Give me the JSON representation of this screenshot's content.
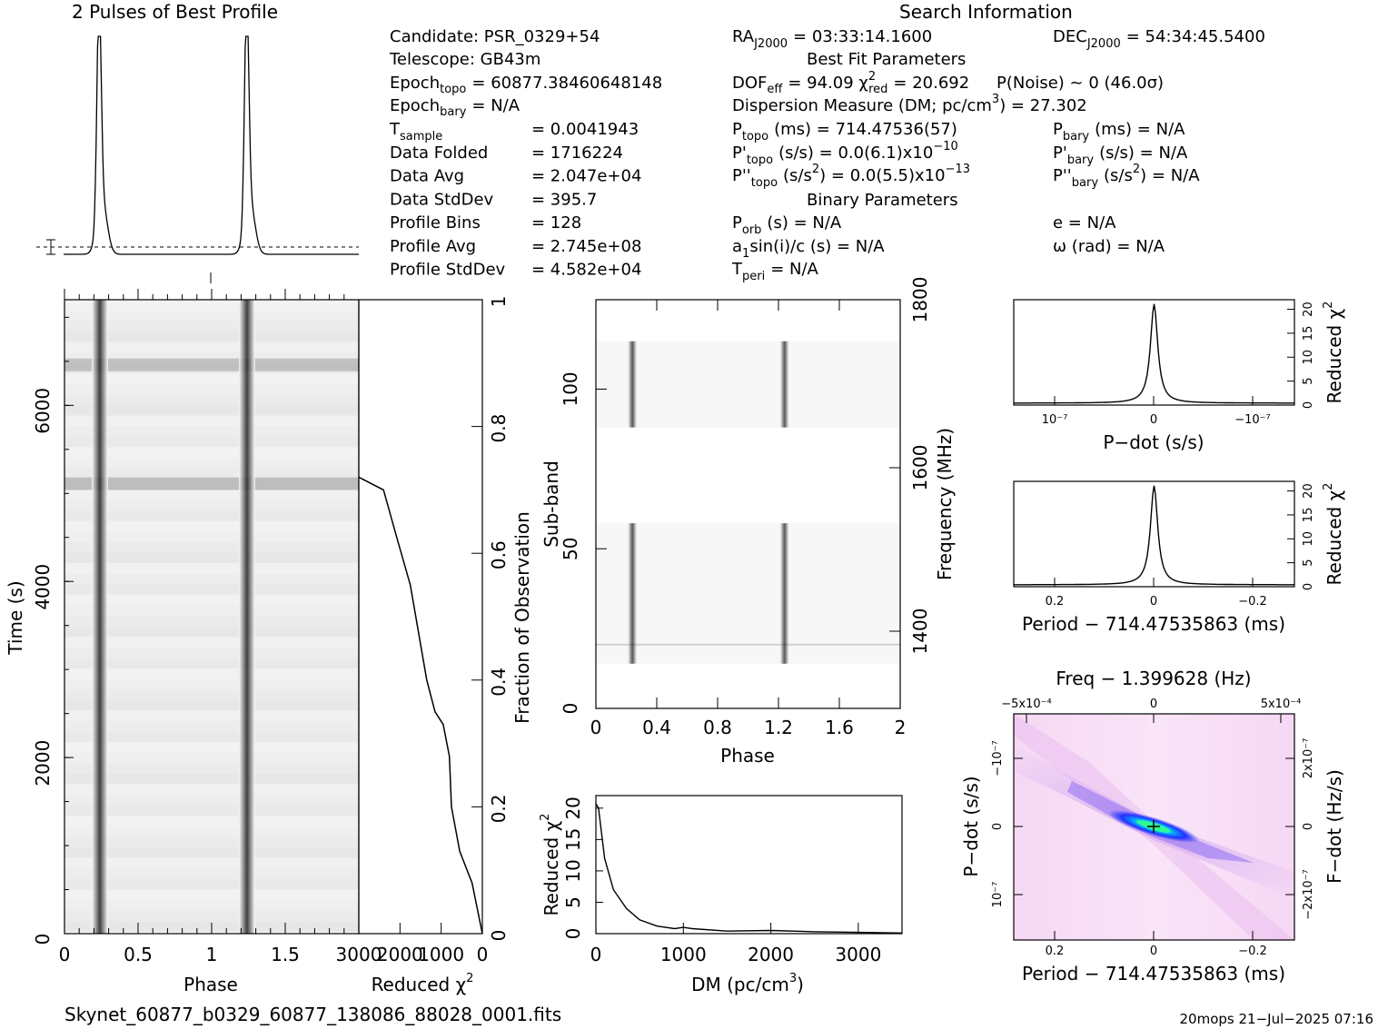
{
  "titles": {
    "profile": "2 Pulses of Best Profile",
    "search": "Search Information",
    "best_fit": "Best Fit Parameters",
    "binary": "Binary Parameters",
    "filename": "Skynet_60877_b0329_60877_138086_88028_0001.fits",
    "footer": "20mops  21−Jul−2025 07:16"
  },
  "info_left": {
    "candidate": "Candidate:  PSR_0329+54",
    "telescope": "Telescope:  GB43m",
    "epoch_topo": "Epoch",
    "epoch_topo_sub": "topo",
    "epoch_topo_val": "= 60877.38460648148",
    "epoch_bary": "Epoch",
    "epoch_bary_sub": "bary",
    "epoch_bary_val": "= N/A",
    "tsample": "T",
    "tsample_sub": "sample",
    "tsample_val": "=   0.0041943",
    "rows": [
      {
        "label": "Data Folded",
        "value": "=   1716224"
      },
      {
        "label": "Data Avg",
        "value": "=   2.047e+04"
      },
      {
        "label": "Data StdDev",
        "value": "=   395.7"
      },
      {
        "label": "Profile Bins",
        "value": "=   128"
      },
      {
        "label": "Profile Avg",
        "value": "=   2.745e+08"
      },
      {
        "label": "Profile StdDev",
        "value": "=   4.582e+04"
      }
    ]
  },
  "info_mid": {
    "ra": "RA",
    "ra_sub": "J2000",
    "ra_val": "= 03:33:14.1600",
    "dof": "DOF",
    "dof_sub": "eff",
    "dof_val": "= 94.09  χ",
    "chi_sub": "red",
    "chi_sup": "2",
    "chi_val": "= 20.692",
    "pnoise": "P(Noise) ~ 0    (46.0σ)",
    "dm": "Dispersion Measure (DM; pc/cm",
    "dm_sup": "3",
    "dm_val": ") = 27.302",
    "ptopo": "P",
    "ptopo_sub": "topo",
    "ptopo_val": "(ms) =  714.47536(57)",
    "pdtopo": "P'",
    "pdtopo_sub": "topo",
    "pdtopo_val": "(s/s) = 0.0(6.1)x10",
    "pdtopo_exp": "−10",
    "pddtopo": "P''",
    "pddtopo_sub": "topo",
    "pddtopo_val": "(s/s",
    "pddtopo_sup": "2",
    "pddtopo_val2": ") = 0.0(5.5)x10",
    "pddtopo_exp": "−13",
    "porb": "P",
    "porb_sub": "orb",
    "porb_val": "(s) = N/A",
    "a1": "a",
    "a1_sub": "1",
    "a1_val": "sin(i)/c (s) = N/A",
    "tperi": "T",
    "tperi_sub": "peri",
    "tperi_val": "= N/A"
  },
  "info_right": {
    "dec": "DEC",
    "dec_sub": "J2000",
    "dec_val": "= 54:34:45.5400",
    "pbary": "P",
    "pbary_sub": "bary",
    "pbary_val": "(ms) = N/A",
    "pdbary": "P'",
    "pdbary_sub": "bary",
    "pdbary_val": "(s/s) = N/A",
    "pddbary": "P''",
    "pddbary_sub": "bary",
    "pddbary_val": "(s/s",
    "pddbary_sup": "2",
    "pddbary_val2": ") = N/A",
    "e": "e = N/A",
    "omega": "ω (rad) = N/A"
  },
  "axes": {
    "time_label": "Time (s)",
    "phase_label": "Phase",
    "redchi_label": "Reduced χ",
    "redchi_sup": "2",
    "frac_label": "Fraction of Observation",
    "subband_label": "Sub-band",
    "freq_label": "Frequency (MHz)",
    "dm_label": "DM (pc/cm",
    "dm_label_sup": "3",
    "dm_label_end": ")",
    "pdot_label": "P−dot (s/s)",
    "period_label": "Period − 714.47535863 (ms)",
    "period_label2": "Period − 714.47535863 (ms)",
    "freq_top_label": "Freq − 1.399628 (Hz)",
    "pdot_left": "P−dot (s/s)",
    "fdot_right": "F−dot (Hz/s)",
    "time_ticks": [
      "0",
      "2000",
      "4000",
      "6000"
    ],
    "phase_ticks": [
      "0",
      "0.5",
      "1",
      "1.5"
    ],
    "chi_ticks": [
      "3000",
      "2000",
      "1000",
      "0"
    ],
    "frac_ticks": [
      "0",
      "0.2",
      "0.4",
      "0.6",
      "0.8",
      "1"
    ],
    "sub_ticks": [
      "0",
      "50",
      "100"
    ],
    "sub_phase_ticks": [
      "0",
      "0.4",
      "0.8",
      "1.2",
      "1.6",
      "2"
    ],
    "freq_ticks": [
      "1400",
      "1600",
      "1800"
    ],
    "dm_ticks": [
      "0",
      "1000",
      "2000",
      "3000"
    ],
    "dm_chi_ticks": [
      "0",
      "5",
      "10",
      "15",
      "20"
    ],
    "pd_chi_ticks": [
      "0",
      "5",
      "10",
      "15",
      "20"
    ],
    "pd_x_ticks": [
      "10⁻⁷",
      "0",
      "−10⁻⁷"
    ],
    "per_x_ticks": [
      "0.2",
      "0",
      "−0.2"
    ],
    "freq_top_ticks": [
      "−5x10⁻⁴",
      "0",
      "5x10⁻⁴"
    ],
    "pdot_left_ticks": [
      "−10⁻⁷",
      "0",
      "10⁻⁷"
    ],
    "fdot_right_ticks": [
      "2x10⁻⁷",
      "0",
      "−2x10⁻⁷"
    ]
  },
  "chart_data": [
    {
      "type": "line",
      "title": "2 Pulses of Best Profile",
      "xlabel": "Phase",
      "xlim": [
        0,
        2
      ],
      "peaks_phase": [
        0.24,
        1.24
      ],
      "peak_width": 0.03
    },
    {
      "type": "heatmap",
      "name": "time-phase",
      "xlabel": "Phase",
      "ylabel": "Time (s)",
      "xlim": [
        0,
        2
      ],
      "ylim": [
        0,
        7200
      ],
      "pulse_phases": [
        0.24,
        1.24
      ],
      "bright_rows_time": [
        5100,
        6450
      ]
    },
    {
      "type": "line",
      "name": "reduced-chi2-vs-fraction",
      "xlabel": "Reduced χ²",
      "ylabel": "Fraction of Observation",
      "xlim": [
        3000,
        0
      ],
      "ylim": [
        0,
        1
      ],
      "points": [
        [
          0,
          0
        ],
        [
          250,
          0.08
        ],
        [
          550,
          0.13
        ],
        [
          750,
          0.2
        ],
        [
          800,
          0.28
        ],
        [
          950,
          0.33
        ],
        [
          1150,
          0.35
        ],
        [
          1350,
          0.4
        ],
        [
          1750,
          0.55
        ],
        [
          2100,
          0.63
        ],
        [
          2400,
          0.7
        ],
        [
          3000,
          0.72
        ]
      ]
    },
    {
      "type": "heatmap",
      "name": "subband-phase",
      "xlabel": "Phase",
      "ylabel": "Sub-band",
      "xlim": [
        0,
        2
      ],
      "ylim": [
        0,
        128
      ],
      "pulse_phases": [
        0.24,
        1.24
      ],
      "active_subbands": [
        [
          14,
          58
        ],
        [
          88,
          115
        ]
      ]
    },
    {
      "type": "line",
      "name": "dm-curve",
      "xlabel": "DM (pc/cm³)",
      "ylabel": "Reduced χ²",
      "xlim": [
        0,
        3500
      ],
      "ylim": [
        0,
        22
      ],
      "points": [
        [
          0,
          20.7
        ],
        [
          30,
          20
        ],
        [
          100,
          12
        ],
        [
          200,
          7
        ],
        [
          350,
          4
        ],
        [
          500,
          2.2
        ],
        [
          700,
          1.2
        ],
        [
          900,
          0.8
        ],
        [
          1000,
          1.0
        ],
        [
          1100,
          0.8
        ],
        [
          1500,
          0.4
        ],
        [
          2000,
          0.5
        ],
        [
          2500,
          0.3
        ],
        [
          3000,
          0.2
        ],
        [
          3500,
          0.1
        ]
      ]
    },
    {
      "type": "line",
      "name": "pdot-curve",
      "xlabel": "P−dot (s/s)",
      "ylabel": "Reduced χ²",
      "ylim": [
        0,
        22
      ],
      "peak": 20.7
    },
    {
      "type": "line",
      "name": "period-curve",
      "xlabel": "Period − 714.47535863 (ms)",
      "ylabel": "Reduced χ²",
      "xlim": [
        0.28,
        -0.28
      ],
      "ylim": [
        0,
        22
      ],
      "peak": 20.7
    },
    {
      "type": "heatmap",
      "name": "period-pdot",
      "xlabel": "Period − 714.47535863 (ms)",
      "ylabel": "P−dot (s/s)",
      "xlim": [
        0.28,
        -0.28
      ]
    }
  ]
}
